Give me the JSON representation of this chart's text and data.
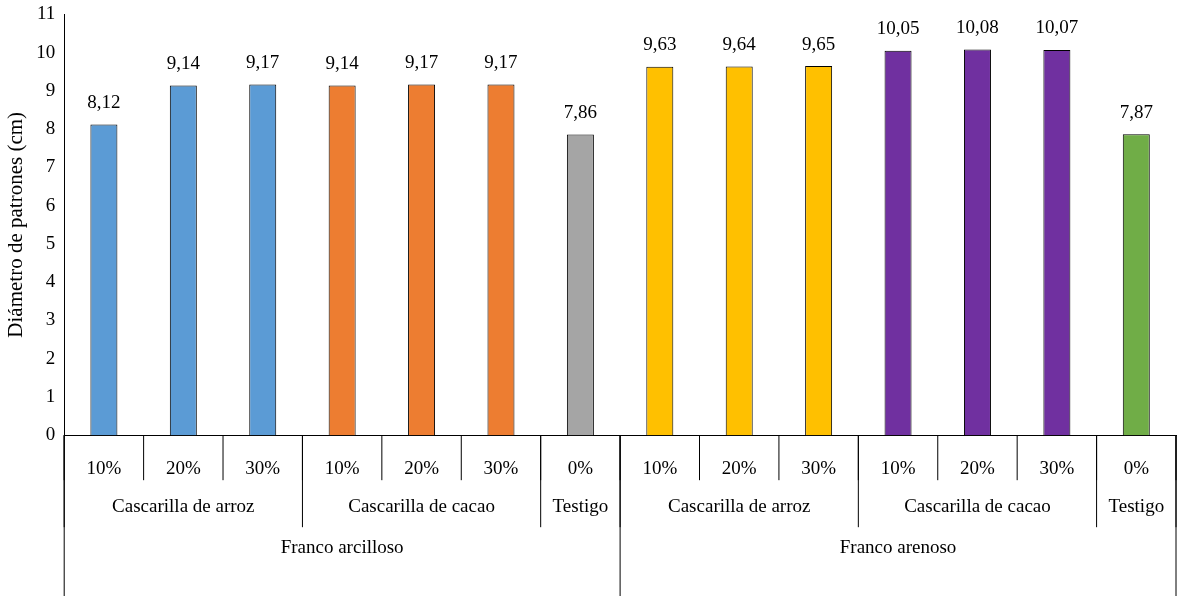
{
  "chart_data": {
    "type": "bar",
    "ylabel": "Diámetro de patrones (cm)",
    "categories": [
      "10%",
      "20%",
      "30%",
      "10%",
      "20%",
      "30%",
      "0%",
      "10%",
      "20%",
      "30%",
      "10%",
      "20%",
      "30%",
      "0%"
    ],
    "values": [
      8.12,
      9.14,
      9.17,
      9.14,
      9.17,
      9.17,
      7.86,
      9.63,
      9.64,
      9.65,
      10.05,
      10.08,
      10.07,
      7.87
    ],
    "colors": [
      "#5b9bd5",
      "#5b9bd5",
      "#5b9bd5",
      "#ed7d31",
      "#ed7d31",
      "#ed7d31",
      "#a5a5a5",
      "#ffc000",
      "#ffc000",
      "#ffc000",
      "#7030a0",
      "#7030a0",
      "#7030a0",
      "#70ad47"
    ],
    "value_labels": [
      "8,12",
      "9,14",
      "9,17",
      "9,14",
      "9,17",
      "9,17",
      "7,86",
      "9,63",
      "9,64",
      "9,65",
      "10,05",
      "10,08",
      "10,07",
      "7,87"
    ],
    "annotations": [
      "Cascarilla de arroz",
      "Cascarilla de cacao",
      "Testigo",
      "Cascarilla de arroz",
      "Cascarilla de cacao",
      "Testigo",
      "Franco arcilloso",
      "Franco arenoso"
    ],
    "ylim": [
      0,
      11
    ],
    "yticks": [
      0,
      1,
      2,
      3,
      4,
      5,
      6,
      7,
      8,
      9,
      10,
      11
    ],
    "grid": false,
    "legend": false
  }
}
